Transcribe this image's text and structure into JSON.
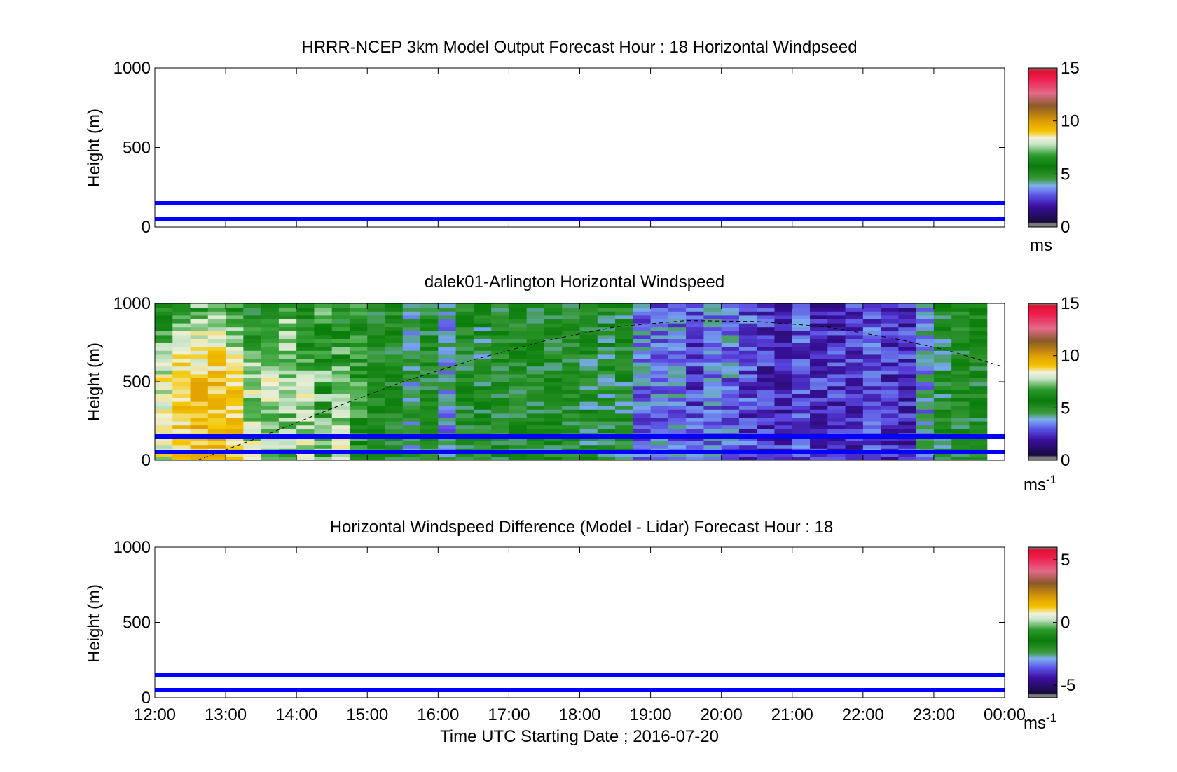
{
  "figure": {
    "xlabel": "Time UTC  Starting Date ; 2016-07-20",
    "x_ticks": [
      "12:00",
      "13:00",
      "14:00",
      "15:00",
      "16:00",
      "17:00",
      "18:00",
      "19:00",
      "20:00",
      "21:00",
      "22:00",
      "23:00",
      "00:00"
    ],
    "y_ticks": [
      "0",
      "500",
      "1000"
    ],
    "ylabel": "Height (m)"
  },
  "chart_data": [
    {
      "type": "heatmap",
      "title": "HRRR-NCEP 3km Model Output   Forecast Hour : 18 Horizontal Windpseed",
      "ylabel": "Height (m)",
      "xlim": [
        "12:00",
        "00:00"
      ],
      "ylim": [
        0,
        1000
      ],
      "colorbar": {
        "ticks": [
          "0",
          "5",
          "10",
          "15"
        ],
        "range": [
          0,
          15
        ],
        "unit": "ms",
        "unit_sup": ""
      },
      "horizontal_lines_m": [
        50,
        150
      ],
      "line_color": "#0000ff",
      "data": "empty"
    },
    {
      "type": "heatmap",
      "title": "dalek01-Arlington  Horizontal Windspeed",
      "ylabel": "Height (m)",
      "xlim": [
        "12:00",
        "00:00"
      ],
      "ylim": [
        0,
        1000
      ],
      "colorbar": {
        "ticks": [
          "0",
          "5",
          "10",
          "15"
        ],
        "range": [
          0,
          15
        ],
        "unit": "ms",
        "unit_sup": "-1"
      },
      "horizontal_lines_m": [
        50,
        150
      ],
      "line_color": "#0000ff",
      "boundary_layer_curve": {
        "hours_utc": [
          12.6,
          13.5,
          14.5,
          15.5,
          16.5,
          17.5,
          18.5,
          19.5,
          20.5,
          21.5,
          22.5,
          23.2,
          23.95
        ],
        "height_m": [
          0,
          150,
          330,
          500,
          640,
          760,
          850,
          890,
          885,
          850,
          770,
          700,
          600
        ]
      },
      "columns": {
        "start_hour": 12.0,
        "step_hours": 0.25,
        "count": 47,
        "dominant_speed_ms": [
          8,
          9,
          9.5,
          9.5,
          9,
          7.5,
          7.5,
          7,
          7.5,
          6.5,
          7.5,
          6,
          5,
          5,
          4,
          5,
          3.5,
          5,
          4.5,
          5,
          5,
          5,
          5,
          5,
          4.5,
          4.5,
          4.5,
          3,
          3,
          3,
          2.5,
          3,
          3,
          2.5,
          2,
          2,
          2.5,
          2,
          2,
          2,
          2.5,
          2,
          2,
          3.5,
          4.5,
          5,
          5
        ]
      }
    },
    {
      "type": "heatmap",
      "title": "Horizontal Windspeed Difference (Model - Lidar) Forecast Hour : 18",
      "ylabel": "Height (m)",
      "xlim": [
        "12:00",
        "00:00"
      ],
      "ylim": [
        0,
        1000
      ],
      "colorbar": {
        "ticks": [
          "-5",
          "0",
          "5"
        ],
        "tick_values": [
          -5,
          0,
          5
        ],
        "range": [
          -6,
          6
        ],
        "unit": "ms",
        "unit_sup": "-1"
      },
      "horizontal_lines_m": [
        50,
        150
      ],
      "line_color": "#0000ff",
      "data": "empty"
    }
  ]
}
